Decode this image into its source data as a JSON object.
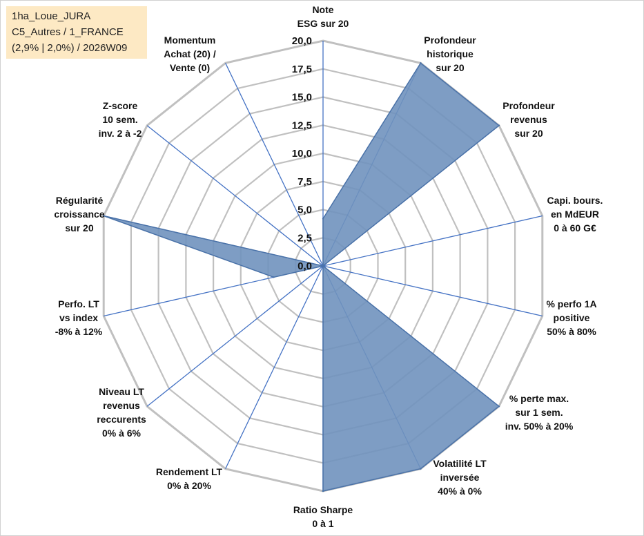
{
  "info_box": {
    "line1": "1ha_Loue_JURA",
    "line2": "C5_Autres / 1_FRANCE",
    "line3": "(2,9% | 2,0%) / 2026W09"
  },
  "chart_data": {
    "type": "radar",
    "rmin": 0,
    "rmax": 20,
    "tick_step": 2.5,
    "ticks": [
      "0,0",
      "2,5",
      "5,0",
      "7,5",
      "10,0",
      "12,5",
      "15,0",
      "17,5",
      "20,0"
    ],
    "axes": [
      {
        "label": [
          "Note",
          "ESG sur 20"
        ],
        "value": 4.2
      },
      {
        "label": [
          "Profondeur",
          "historique",
          "sur 20"
        ],
        "value": 20
      },
      {
        "label": [
          "Profondeur",
          "revenus",
          "sur 20"
        ],
        "value": 20
      },
      {
        "label": [
          "Capi. bours.",
          "en MdEUR",
          "0 à 60 G€"
        ],
        "value": 0
      },
      {
        "label": [
          "% perfo 1A",
          "positive",
          "50% à 80%"
        ],
        "value": 0
      },
      {
        "label": [
          "% perte max.",
          "sur 1 sem.",
          "inv. 50% à 20%"
        ],
        "value": 20
      },
      {
        "label": [
          "Volatilité LT",
          "inversée",
          "40% à 0%"
        ],
        "value": 20
      },
      {
        "label": [
          "Ratio Sharpe",
          "0 à 1"
        ],
        "value": 20
      },
      {
        "label": [
          "Rendement LT",
          "0% à 20%"
        ],
        "value": 0
      },
      {
        "label": [
          "Niveau LT",
          "revenus",
          "reccurents",
          "0% à 6%"
        ],
        "value": 0
      },
      {
        "label": [
          "Perfo. LT",
          "vs index",
          "-8% à 12%"
        ],
        "value": 4.5
      },
      {
        "label": [
          "Régularité",
          "croissance",
          "sur 20"
        ],
        "value": 20
      },
      {
        "label": [
          "Z-score",
          "10 sem.",
          "inv. 2 à -2"
        ],
        "value": 0
      },
      {
        "label": [
          "Momentum",
          "Achat (20) /",
          "Vente (0)"
        ],
        "value": 0
      }
    ],
    "colors": {
      "fill": "#7092be",
      "stroke": "#4a72a8",
      "grid": "#c0c0c0",
      "spoke": "#4472c4"
    },
    "grid": true,
    "legend": "none"
  }
}
